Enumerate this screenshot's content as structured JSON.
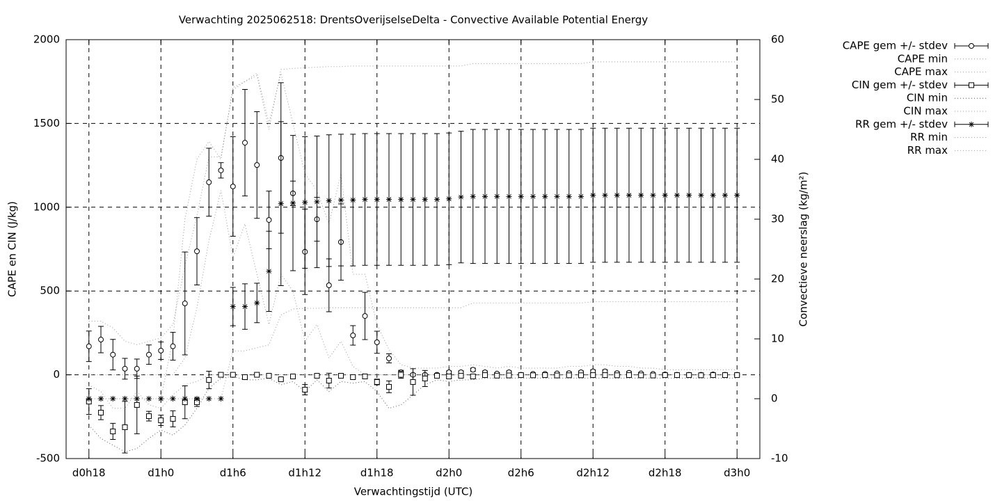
{
  "chart_data": {
    "type": "line",
    "title": "Verwachting 2025062518: DrentsOverijselseDelta - Convective Available Potential Energy",
    "x_label": "Verwachtingstijd (UTC)",
    "y_label": "CAPE en CIN (J/kg)",
    "y2_label": "Convectieve neerslag (kg/m²)",
    "grid": true,
    "legend": "right",
    "xlim": [
      16.1,
      73.9
    ],
    "xticks": [
      {
        "value": 18,
        "label": "d0h18"
      },
      {
        "value": 24,
        "label": "d1h0"
      },
      {
        "value": 30,
        "label": "d1h6"
      },
      {
        "value": 36,
        "label": "d1h12"
      },
      {
        "value": 42,
        "label": "d1h18"
      },
      {
        "value": 48,
        "label": "d2h0"
      },
      {
        "value": 54,
        "label": "d2h6"
      },
      {
        "value": 60,
        "label": "d2h12"
      },
      {
        "value": 66,
        "label": "d2h18"
      },
      {
        "value": 72,
        "label": "d3h0"
      }
    ],
    "ylim": [
      -500,
      2000
    ],
    "yticks": [
      -500,
      0,
      500,
      1000,
      1500,
      2000
    ],
    "y2lim": [
      -10,
      60
    ],
    "y2ticks": [
      -10,
      0,
      10,
      20,
      30,
      40,
      50,
      60
    ],
    "x": [
      18,
      19,
      20,
      21,
      22,
      23,
      24,
      25,
      26,
      27,
      28,
      29,
      30,
      31,
      32,
      33,
      34,
      35,
      36,
      37,
      38,
      39,
      40,
      41,
      42,
      43,
      44,
      45,
      46,
      47,
      48,
      49,
      50,
      51,
      52,
      53,
      54,
      55,
      56,
      57,
      58,
      59,
      60,
      61,
      62,
      63,
      64,
      65,
      66,
      67,
      68,
      69,
      70,
      71,
      72
    ],
    "series": [
      {
        "name": "CAPE gem +/- stdev",
        "color": "#000000",
        "marker": "circle",
        "values": [
          170,
          210,
          120,
          36,
          36,
          120,
          144,
          170,
          426,
          737,
          1149,
          1220,
          1124,
          1385,
          1252,
          924,
          1294,
          1083,
          734,
          928,
          534,
          792,
          235,
          351,
          194,
          98,
          15,
          0,
          0,
          0,
          15,
          15,
          30,
          15,
          7,
          15,
          0,
          5,
          5,
          8,
          10,
          15,
          20,
          20,
          10,
          12,
          8,
          5,
          2,
          0,
          0,
          0,
          2,
          0,
          0
        ],
        "errors": [
          91,
          79,
          91,
          62,
          58,
          58,
          52,
          83,
          307,
          201,
          203,
          46,
          297,
          318,
          318,
          172,
          449,
          73,
          255,
          131,
          158,
          228,
          58,
          141,
          66,
          27,
          12,
          8,
          6,
          6,
          8,
          8,
          10,
          8,
          6,
          8,
          6,
          6,
          6,
          6,
          8,
          8,
          10,
          10,
          8,
          8,
          6,
          6,
          6,
          4,
          4,
          4,
          4,
          4,
          4
        ]
      },
      {
        "name": "CAPE min",
        "color": "#999999",
        "style": "dotted",
        "values": [
          0,
          0,
          0,
          0,
          0,
          0,
          0,
          0,
          100,
          400,
          800,
          1100,
          700,
          900,
          600,
          300,
          600,
          500,
          200,
          300,
          100,
          200,
          50,
          0,
          0,
          0,
          0,
          0,
          0,
          0,
          0,
          0,
          0,
          0,
          0,
          0,
          0,
          0,
          0,
          0,
          0,
          0,
          0,
          0,
          0,
          0,
          0,
          0,
          0,
          0,
          0,
          0,
          0,
          0,
          0
        ]
      },
      {
        "name": "CAPE max",
        "color": "#999999",
        "style": "dotted",
        "values": [
          320,
          320,
          280,
          200,
          180,
          200,
          220,
          300,
          650,
          950,
          1300,
          1300,
          1700,
          1750,
          1800,
          1500,
          1800,
          1500,
          1200,
          1100,
          900,
          1200,
          600,
          600,
          300,
          150,
          60,
          40,
          40,
          40,
          50,
          50,
          60,
          50,
          40,
          50,
          40,
          40,
          40,
          40,
          50,
          50,
          60,
          60,
          50,
          50,
          40,
          40,
          30,
          30,
          30,
          30,
          30,
          30,
          30
        ]
      },
      {
        "name": "CIN gem +/- stdev",
        "color": "#000000",
        "marker": "square",
        "values": [
          -160,
          -226,
          -338,
          -313,
          -180,
          -247,
          -272,
          -263,
          -164,
          -164,
          -31,
          0,
          0,
          -14,
          0,
          -6,
          -27,
          -10,
          -89,
          -6,
          -35,
          -6,
          -14,
          -10,
          -43,
          -72,
          0,
          -43,
          -22,
          -6,
          -10,
          -6,
          -10,
          -2,
          -5,
          -4,
          -2,
          -3,
          -2,
          -4,
          -3,
          -3,
          -2,
          -2,
          -3,
          -2,
          -3,
          -4,
          -2,
          -2,
          -2,
          -3,
          -2,
          -2,
          -2
        ],
        "errors": [
          77,
          42,
          48,
          154,
          172,
          29,
          31,
          48,
          98,
          25,
          52,
          5,
          5,
          5,
          5,
          5,
          5,
          5,
          31,
          5,
          44,
          5,
          5,
          5,
          17,
          35,
          21,
          79,
          48,
          8,
          10,
          8,
          8,
          6,
          6,
          6,
          6,
          6,
          6,
          6,
          6,
          6,
          6,
          6,
          6,
          6,
          6,
          6,
          6,
          6,
          6,
          6,
          6,
          6,
          6
        ]
      },
      {
        "name": "CIN min",
        "color": "#555555",
        "style": "dotted",
        "values": [
          -300,
          -380,
          -420,
          -460,
          -440,
          -380,
          -330,
          -360,
          -300,
          -200,
          -80,
          -20,
          -10,
          -30,
          -30,
          -20,
          -60,
          -40,
          -100,
          -30,
          -100,
          -40,
          -50,
          -40,
          -100,
          -200,
          -180,
          -120,
          -60,
          -30,
          -40,
          -30,
          -30,
          -20,
          -20,
          -20,
          -20,
          -20,
          -20,
          -20,
          -20,
          -20,
          -20,
          -20,
          -20,
          -20,
          -20,
          -20,
          -20,
          -20,
          -20,
          -20,
          -20,
          -20,
          -20
        ]
      },
      {
        "name": "CIN max",
        "color": "#999999",
        "style": "dotted",
        "values": [
          -60,
          -100,
          -200,
          -200,
          -100,
          -180,
          -200,
          -120,
          -60,
          -40,
          0,
          0,
          0,
          0,
          0,
          0,
          0,
          0,
          0,
          0,
          0,
          0,
          0,
          0,
          0,
          0,
          0,
          0,
          0,
          0,
          0,
          0,
          0,
          0,
          0,
          0,
          0,
          0,
          0,
          0,
          0,
          0,
          0,
          0,
          0,
          0,
          0,
          0,
          0,
          0,
          0,
          0,
          0,
          0,
          0
        ]
      },
      {
        "name": "RR gem +/- stdev",
        "color": "#000000",
        "marker": "asterisk",
        "axis": "y2",
        "values": [
          0,
          0,
          0,
          0,
          0,
          0,
          0,
          0,
          0,
          0,
          0,
          0,
          15.4,
          15.4,
          16.0,
          21.3,
          32.6,
          32.7,
          32.8,
          32.9,
          33.1,
          33.2,
          33.2,
          33.3,
          33.3,
          33.3,
          33.3,
          33.3,
          33.3,
          33.3,
          33.4,
          33.7,
          33.8,
          33.8,
          33.8,
          33.8,
          33.8,
          33.8,
          33.8,
          33.8,
          33.8,
          33.8,
          34.0,
          34.0,
          34.0,
          34.0,
          34.0,
          34.0,
          34.0,
          34.0,
          34.0,
          34.0,
          34.0,
          34.0,
          34.0
        ],
        "errors": [
          0,
          0,
          0,
          0,
          0,
          0,
          0,
          0,
          0,
          0,
          0,
          0,
          3.2,
          3.8,
          3.3,
          6.7,
          13.7,
          11.3,
          11.0,
          11.0,
          11.0,
          11.0,
          11.0,
          11.0,
          11.0,
          11.0,
          11.0,
          11.0,
          11.0,
          11.0,
          11.0,
          11.0,
          11.2,
          11.2,
          11.2,
          11.2,
          11.2,
          11.2,
          11.2,
          11.2,
          11.2,
          11.2,
          11.2,
          11.2,
          11.2,
          11.2,
          11.2,
          11.2,
          11.2,
          11.2,
          11.2,
          11.2,
          11.2,
          11.2,
          11.2
        ]
      },
      {
        "name": "RR min",
        "color": "#999999",
        "style": "dotted",
        "axis": "y2",
        "values": [
          0,
          0,
          0,
          0,
          0,
          0,
          0,
          0,
          0,
          0,
          0,
          0,
          8,
          8,
          8.5,
          9,
          14,
          15,
          15.1,
          15.1,
          15.2,
          15.2,
          15.2,
          15.2,
          15.2,
          15.2,
          15.2,
          15.2,
          15.2,
          15.2,
          15.2,
          15.2,
          16,
          16,
          16,
          16,
          16,
          16,
          16,
          16,
          16,
          16,
          16.2,
          16.2,
          16.2,
          16.2,
          16.2,
          16.2,
          16.2,
          16.2,
          16.2,
          16.2,
          16.2,
          16.2,
          16.2
        ]
      },
      {
        "name": "RR max",
        "color": "#999999",
        "style": "dotted",
        "axis": "y2",
        "values": [
          0,
          0,
          0,
          0,
          0,
          0,
          0,
          10,
          30,
          40,
          43,
          40,
          52,
          53,
          54,
          45,
          55,
          55.2,
          55.3,
          55.4,
          55.5,
          55.5,
          55.6,
          55.6,
          55.6,
          55.6,
          55.6,
          55.6,
          55.6,
          55.6,
          55.6,
          55.6,
          56.0,
          56.0,
          56.0,
          56.0,
          56.0,
          56.0,
          56.0,
          56.0,
          56.0,
          56.0,
          56.3,
          56.3,
          56.3,
          56.3,
          56.3,
          56.3,
          56.3,
          56.3,
          56.3,
          56.3,
          56.3,
          56.3,
          56.3
        ]
      }
    ]
  }
}
